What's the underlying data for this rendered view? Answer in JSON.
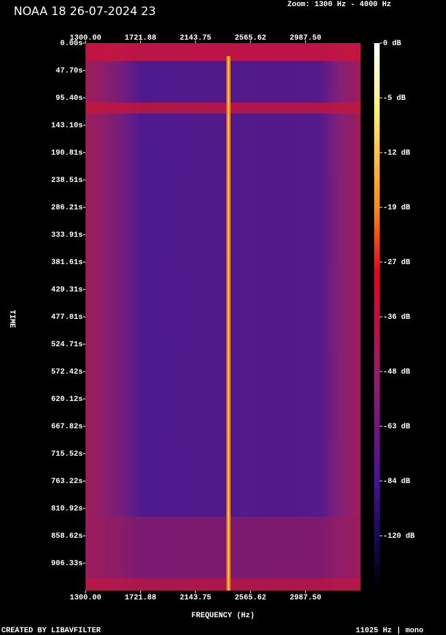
{
  "chart_data": {
    "type": "spectrogram",
    "title": "NOAA 18 26-07-2024 23",
    "subtitle": "Zoom: 1300 Hz - 4000 Hz",
    "x_label": "FREQUENCY (Hz)",
    "y_label": "TIME",
    "footer_left": "CREATED BY LIBAVFILTER",
    "footer_right": "11025 Hz | mono",
    "xlim": [
      1300,
      3409.4
    ],
    "xticks": [
      {
        "value": 1300,
        "label": "1300.00"
      },
      {
        "value": 1721.88,
        "label": "1721.88"
      },
      {
        "value": 2143.75,
        "label": "2143.75"
      },
      {
        "value": 2565.62,
        "label": "2565.62"
      },
      {
        "value": 2987.5,
        "label": "2987.50"
      }
    ],
    "ylim": [
      0,
      954.0
    ],
    "yticks": [
      {
        "value": 0,
        "label": "0.00s"
      },
      {
        "value": 47.7,
        "label": "47.70s"
      },
      {
        "value": 95.4,
        "label": "95.40s"
      },
      {
        "value": 143.1,
        "label": "143.10s"
      },
      {
        "value": 190.81,
        "label": "190.81s"
      },
      {
        "value": 238.51,
        "label": "238.51s"
      },
      {
        "value": 286.21,
        "label": "286.21s"
      },
      {
        "value": 333.91,
        "label": "333.91s"
      },
      {
        "value": 381.61,
        "label": "381.61s"
      },
      {
        "value": 429.31,
        "label": "429.31s"
      },
      {
        "value": 477.01,
        "label": "477.01s"
      },
      {
        "value": 524.71,
        "label": "524.71s"
      },
      {
        "value": 572.42,
        "label": "572.42s"
      },
      {
        "value": 620.12,
        "label": "620.12s"
      },
      {
        "value": 667.82,
        "label": "667.82s"
      },
      {
        "value": 715.52,
        "label": "715.52s"
      },
      {
        "value": 763.22,
        "label": "763.22s"
      },
      {
        "value": 810.92,
        "label": "810.92s"
      },
      {
        "value": 858.62,
        "label": "858.62s"
      },
      {
        "value": 906.33,
        "label": "906.33s"
      }
    ],
    "colorbar_ticks": [
      {
        "value": 0,
        "label": "0 dB"
      },
      {
        "value": -5,
        "label": "-5 dB"
      },
      {
        "value": -12,
        "label": "-12 dB"
      },
      {
        "value": -19,
        "label": "-19 dB"
      },
      {
        "value": -27,
        "label": "-27 dB"
      },
      {
        "value": -36,
        "label": "-36 dB"
      },
      {
        "value": -48,
        "label": "-48 dB"
      },
      {
        "value": -63,
        "label": "-63 dB"
      },
      {
        "value": -84,
        "label": "-84 dB"
      },
      {
        "value": -120,
        "label": "-120 dB"
      }
    ]
  }
}
